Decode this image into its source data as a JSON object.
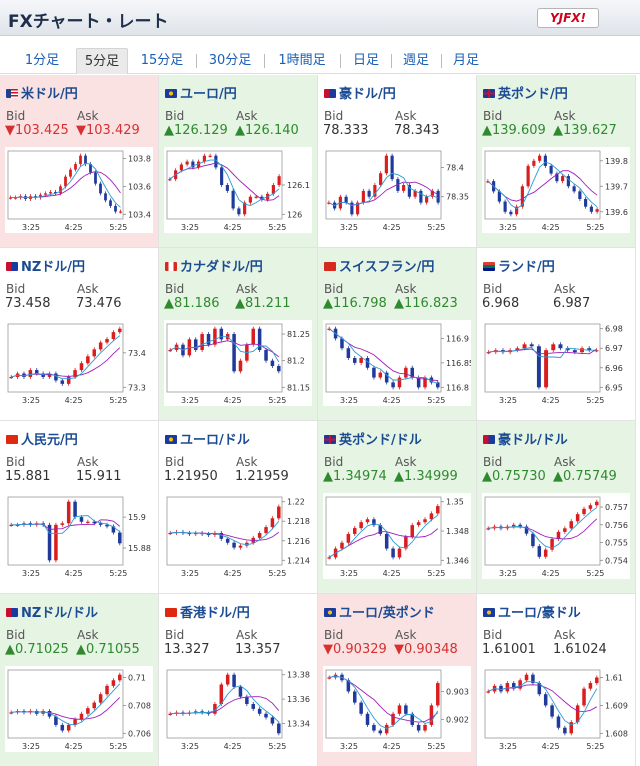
{
  "header": {
    "title": "FXチャート・レート",
    "logo": "YJFX!"
  },
  "tabs": [
    {
      "label": "1分足",
      "active": false
    },
    {
      "label": "5分足",
      "active": true
    },
    {
      "label": "15分足",
      "active": false
    },
    {
      "label": "30分足",
      "active": false
    },
    {
      "label": "1時間足",
      "active": false
    },
    {
      "label": "日足",
      "active": false
    },
    {
      "label": "週足",
      "active": false
    },
    {
      "label": "月足",
      "active": false
    }
  ],
  "labels": {
    "bid": "Bid",
    "ask": "Ask"
  },
  "pairs": [
    {
      "name": "米ドル/円",
      "trend": "down",
      "bid": "▼103.425",
      "ask": "▼103.429",
      "flag": "us",
      "y_ticks": [
        "103.8",
        "103.6",
        "103.4"
      ],
      "x_ticks": [
        "3:25",
        "4:25",
        "5:25"
      ],
      "series": [
        103.52,
        103.52,
        103.53,
        103.51,
        103.53,
        103.52,
        103.54,
        103.55,
        103.56,
        103.55,
        103.6,
        103.67,
        103.72,
        103.76,
        103.82,
        103.76,
        103.7,
        103.62,
        103.55,
        103.5,
        103.46,
        103.42,
        103.42
      ]
    },
    {
      "name": "ユーロ/円",
      "trend": "up",
      "bid": "▲126.129",
      "ask": "▲126.140",
      "flag": "eu",
      "y_ticks": [
        "126.1",
        "126"
      ],
      "x_ticks": [
        "3:25",
        "4:25",
        "5:25"
      ],
      "series": [
        126.12,
        126.15,
        126.17,
        126.18,
        126.16,
        126.18,
        126.2,
        126.2,
        126.16,
        126.1,
        126.08,
        126.02,
        126.0,
        126.04,
        126.06,
        126.06,
        126.05,
        126.07,
        126.1,
        126.13
      ]
    },
    {
      "name": "豪ドル/円",
      "trend": "neutral",
      "bid": "78.333",
      "ask": "78.343",
      "flag": "au",
      "y_ticks": [
        "78.4",
        "78.35"
      ],
      "x_ticks": [
        "3:25",
        "4:25",
        "5:25"
      ],
      "series": [
        78.34,
        78.33,
        78.35,
        78.34,
        78.32,
        78.34,
        78.36,
        78.35,
        78.37,
        78.39,
        78.42,
        78.38,
        78.36,
        78.37,
        78.35,
        78.36,
        78.34,
        78.35,
        78.36,
        78.34
      ]
    },
    {
      "name": "英ポンド/円",
      "trend": "up",
      "bid": "▲139.609",
      "ask": "▲139.627",
      "flag": "uk",
      "y_ticks": [
        "139.8",
        "139.7",
        "139.6"
      ],
      "x_ticks": [
        "3:25",
        "4:25",
        "5:25"
      ],
      "series": [
        139.72,
        139.68,
        139.64,
        139.6,
        139.59,
        139.62,
        139.7,
        139.78,
        139.8,
        139.82,
        139.78,
        139.75,
        139.72,
        139.74,
        139.7,
        139.68,
        139.65,
        139.62,
        139.6,
        139.61
      ]
    },
    {
      "name": "NZドル/円",
      "trend": "neutral",
      "bid": "73.458",
      "ask": "73.476",
      "flag": "nz",
      "y_ticks": [
        "73.4",
        "73.3"
      ],
      "x_ticks": [
        "3:25",
        "4:25",
        "5:25"
      ],
      "series": [
        73.33,
        73.34,
        73.33,
        73.35,
        73.34,
        73.33,
        73.34,
        73.32,
        73.31,
        73.33,
        73.35,
        73.37,
        73.39,
        73.41,
        73.43,
        73.44,
        73.46,
        73.47
      ]
    },
    {
      "name": "カナダドル/円",
      "trend": "up",
      "bid": "▲81.186",
      "ask": "▲81.211",
      "flag": "ca",
      "y_ticks": [
        "81.25",
        "81.2",
        "81.15"
      ],
      "x_ticks": [
        "3:25",
        "4:25",
        "5:25"
      ],
      "series": [
        81.22,
        81.23,
        81.21,
        81.24,
        81.22,
        81.25,
        81.23,
        81.26,
        81.24,
        81.25,
        81.18,
        81.2,
        81.23,
        81.26,
        81.22,
        81.2,
        81.19,
        81.18
      ]
    },
    {
      "name": "スイスフラン/円",
      "trend": "up",
      "bid": "▲116.798",
      "ask": "▲116.823",
      "flag": "ch",
      "y_ticks": [
        "116.9",
        "116.85",
        "116.8"
      ],
      "x_ticks": [
        "3:25",
        "4:25",
        "5:25"
      ],
      "series": [
        116.92,
        116.9,
        116.88,
        116.86,
        116.85,
        116.86,
        116.84,
        116.82,
        116.83,
        116.81,
        116.8,
        116.82,
        116.84,
        116.82,
        116.8,
        116.82,
        116.81,
        116.8
      ]
    },
    {
      "name": "ランド/円",
      "trend": "neutral",
      "bid": "6.968",
      "ask": "6.987",
      "flag": "za",
      "y_ticks": [
        "6.98",
        "6.97",
        "6.96",
        "6.95"
      ],
      "x_ticks": [
        "3:25",
        "4:25",
        "5:25"
      ],
      "series": [
        6.968,
        6.969,
        6.968,
        6.969,
        6.97,
        6.972,
        6.971,
        6.95,
        6.969,
        6.972,
        6.97,
        6.969,
        6.968,
        6.97,
        6.969,
        6.969
      ]
    },
    {
      "name": "人民元/円",
      "trend": "neutral",
      "bid": "15.881",
      "ask": "15.911",
      "flag": "cn",
      "y_ticks": [
        "15.9",
        "15.88"
      ],
      "x_ticks": [
        "3:25",
        "4:25",
        "5:25"
      ],
      "series": [
        15.895,
        15.895,
        15.896,
        15.895,
        15.896,
        15.895,
        15.872,
        15.895,
        15.896,
        15.91,
        15.9,
        15.897,
        15.897,
        15.896,
        15.895,
        15.894,
        15.89,
        15.883
      ]
    },
    {
      "name": "ユーロ/ドル",
      "trend": "neutral",
      "bid": "1.21950",
      "ask": "1.21959",
      "flag": "eu",
      "y_ticks": [
        "1.22",
        "1.218",
        "1.216",
        "1.214"
      ],
      "x_ticks": [
        "3:25",
        "4:25",
        "5:25"
      ],
      "series": [
        1.2168,
        1.2169,
        1.2168,
        1.2167,
        1.2168,
        1.2167,
        1.2166,
        1.2168,
        1.2162,
        1.2158,
        1.2153,
        1.2155,
        1.2158,
        1.2163,
        1.2168,
        1.2174,
        1.2183,
        1.2195
      ]
    },
    {
      "name": "英ポンド/ドル",
      "trend": "up",
      "bid": "▲1.34974",
      "ask": "▲1.34999",
      "flag": "uk",
      "y_ticks": [
        "1.35",
        "1.348",
        "1.346"
      ],
      "x_ticks": [
        "3:25",
        "4:25",
        "5:25"
      ],
      "series": [
        1.3462,
        1.3468,
        1.3472,
        1.3478,
        1.3482,
        1.3486,
        1.3488,
        1.3484,
        1.3478,
        1.3468,
        1.3462,
        1.3468,
        1.3476,
        1.3484,
        1.3486,
        1.3488,
        1.3492,
        1.3497
      ]
    },
    {
      "name": "豪ドル/ドル",
      "trend": "up",
      "bid": "▲0.75730",
      "ask": "▲0.75749",
      "flag": "au",
      "y_ticks": [
        "0.757",
        "0.756",
        "0.755",
        "0.754"
      ],
      "x_ticks": [
        "3:25",
        "4:25",
        "5:25"
      ],
      "series": [
        0.7558,
        0.7559,
        0.7558,
        0.7559,
        0.756,
        0.7559,
        0.7555,
        0.7548,
        0.7542,
        0.7546,
        0.7552,
        0.7556,
        0.7558,
        0.7562,
        0.7566,
        0.7569,
        0.7571,
        0.7573
      ]
    },
    {
      "name": "NZドル/ドル",
      "trend": "up",
      "bid": "▲0.71025",
      "ask": "▲0.71055",
      "flag": "nz",
      "y_ticks": [
        "0.71",
        "0.708",
        "0.706"
      ],
      "x_ticks": [
        "3:25",
        "4:25",
        "5:25"
      ],
      "series": [
        0.7075,
        0.7076,
        0.7075,
        0.7076,
        0.7074,
        0.7076,
        0.7072,
        0.7066,
        0.7062,
        0.7066,
        0.707,
        0.7074,
        0.7078,
        0.7082,
        0.7088,
        0.7094,
        0.7098,
        0.7102
      ]
    },
    {
      "name": "香港ドル/円",
      "trend": "neutral",
      "bid": "13.327",
      "ask": "13.357",
      "flag": "hk",
      "y_ticks": [
        "13.38",
        "13.36",
        "13.34"
      ],
      "x_ticks": [
        "3:25",
        "4:25",
        "5:25"
      ],
      "series": [
        13.348,
        13.349,
        13.348,
        13.349,
        13.35,
        13.349,
        13.348,
        13.356,
        13.372,
        13.38,
        13.37,
        13.362,
        13.356,
        13.352,
        13.348,
        13.345,
        13.34,
        13.332
      ]
    },
    {
      "name": "ユーロ/英ポンド",
      "trend": "down",
      "bid": "▼0.90329",
      "ask": "▼0.90348",
      "flag": "eu",
      "y_ticks": [
        "0.903",
        "0.902"
      ],
      "x_ticks": [
        "3:25",
        "4:25",
        "5:25"
      ],
      "series": [
        0.9035,
        0.9036,
        0.9034,
        0.903,
        0.9026,
        0.9022,
        0.9018,
        0.9016,
        0.9015,
        0.9018,
        0.9022,
        0.9025,
        0.9022,
        0.9018,
        0.9016,
        0.9018,
        0.9025,
        0.9033
      ]
    },
    {
      "name": "ユーロ/豪ドル",
      "trend": "neutral",
      "bid": "1.61001",
      "ask": "1.61024",
      "flag": "eu",
      "y_ticks": [
        "1.61",
        "1.609",
        "1.608"
      ],
      "x_ticks": [
        "3:25",
        "4:25",
        "5:25"
      ],
      "series": [
        1.6095,
        1.6097,
        1.6095,
        1.6098,
        1.6096,
        1.6099,
        1.6101,
        1.6098,
        1.6094,
        1.609,
        1.6086,
        1.6082,
        1.608,
        1.6084,
        1.609,
        1.6096,
        1.6098,
        1.61
      ]
    }
  ],
  "colors": {
    "up_candle": "#d81e1e",
    "down_candle": "#1f3a9a",
    "ma1": "#a01fb8",
    "ma2": "#2a9bd6"
  }
}
